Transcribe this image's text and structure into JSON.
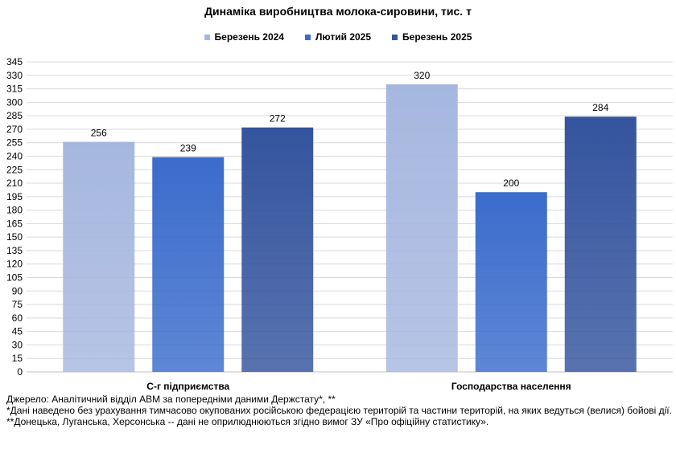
{
  "chart_data": {
    "type": "bar",
    "title": "Динаміка виробництва молока-сировини, тис. т",
    "categories": [
      "С-г підприємства",
      "Господарства населення"
    ],
    "series": [
      {
        "name": "Березень 2024",
        "values": [
          256,
          320
        ],
        "color": "#a6b7df"
      },
      {
        "name": "Лютий 2025",
        "values": [
          239,
          200
        ],
        "color": "#3b6ccc"
      },
      {
        "name": "Березень 2025",
        "values": [
          272,
          284
        ],
        "color": "#34549e"
      }
    ],
    "ylim": [
      0,
      345
    ],
    "ytick_step": 15,
    "grid": true,
    "legend_position": "top"
  },
  "footnotes": [
    "Джерело: Аналітичний відділ АВМ за попередніми даними Держстату*, **",
    "*Дані наведено без урахування тимчасово окупованих російською федерацією територій та частини територій, на яких ведуться (велися) бойові дії.",
    "**Донецька, Луганська, Херсонська -- дані не оприлюднюються згідно вимог ЗУ «Про офіційну статистику»."
  ]
}
